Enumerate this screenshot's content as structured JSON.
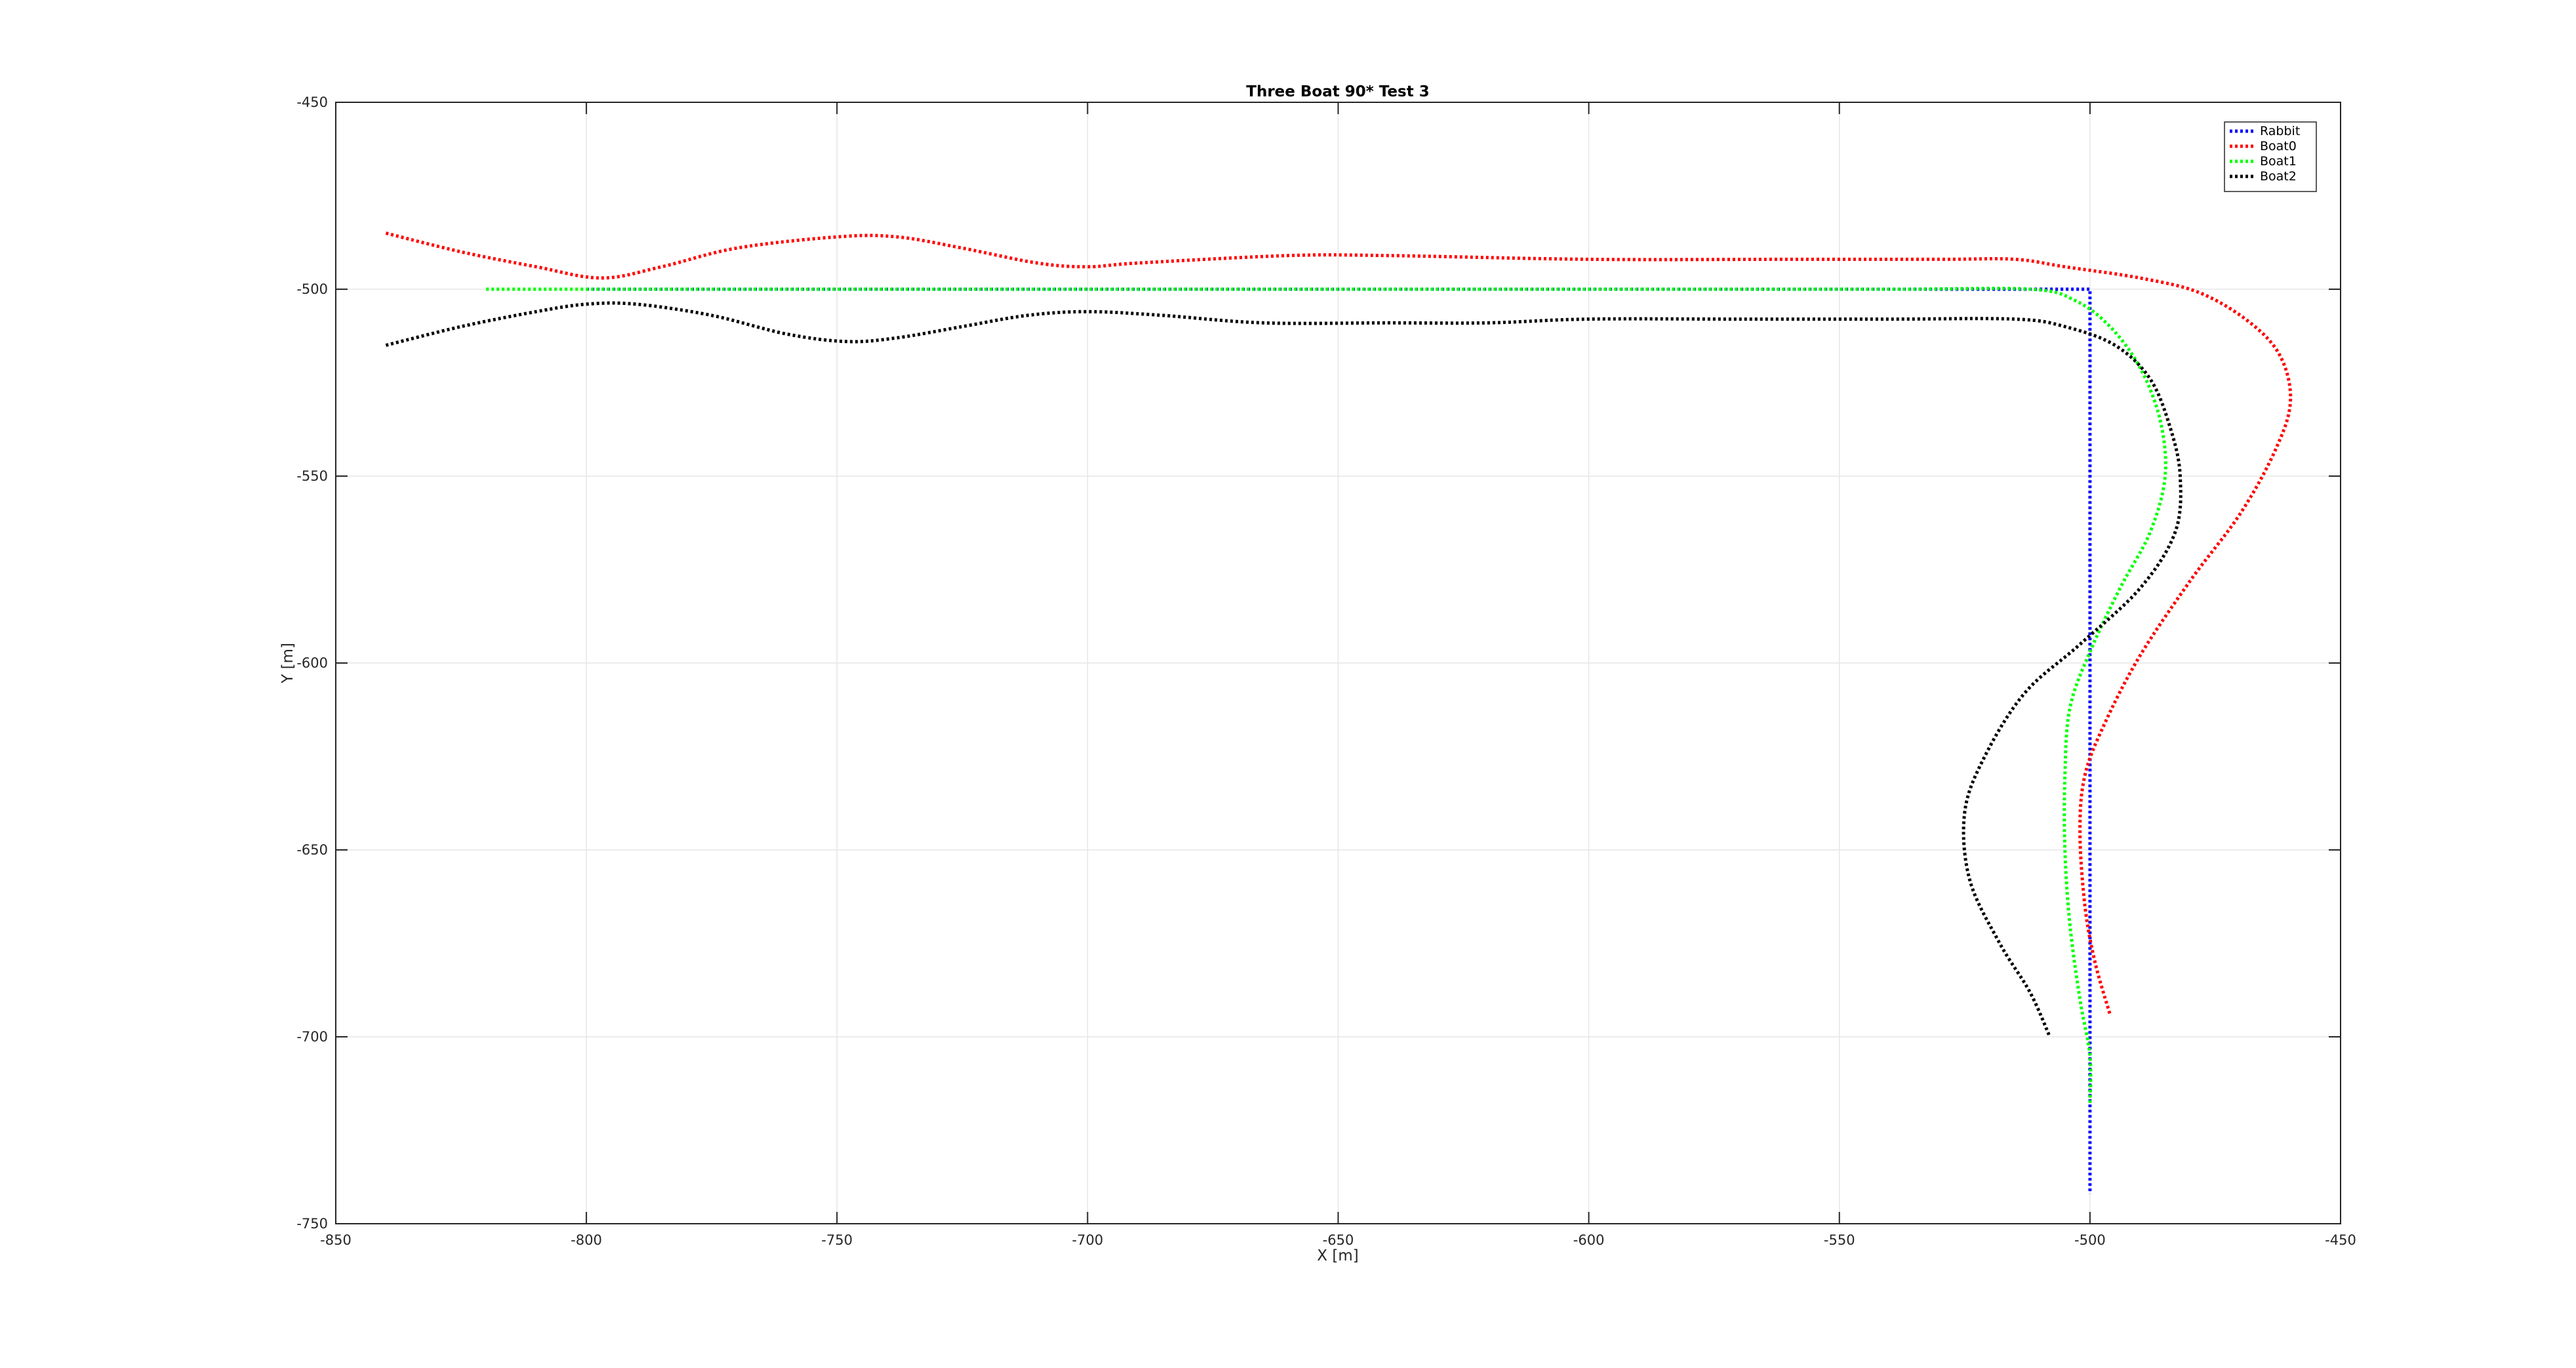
{
  "chart_data": {
    "type": "line",
    "title": "Three Boat 90* Test 3",
    "xlabel": "X [m]",
    "ylabel": "Y [m]",
    "xlim": [
      -850,
      -450
    ],
    "ylim": [
      -750,
      -450
    ],
    "xticks": [
      -850,
      -800,
      -750,
      -700,
      -650,
      -600,
      -550,
      -500,
      -450
    ],
    "yticks": [
      -450,
      -500,
      -550,
      -600,
      -650,
      -700,
      -750
    ],
    "xtick_labels": [
      "-850",
      "-800",
      "-750",
      "-700",
      "-650",
      "-600",
      "-550",
      "-500",
      "-450"
    ],
    "ytick_labels": [
      "-450",
      "-500",
      "-550",
      "-600",
      "-650",
      "-700",
      "-750"
    ],
    "grid": true,
    "legend_position": "top-right",
    "series": [
      {
        "name": "Rabbit",
        "color": "#0000ff",
        "style": "dotted",
        "points": [
          [
            -800,
            -500
          ],
          [
            -750,
            -500
          ],
          [
            -700,
            -500
          ],
          [
            -650,
            -500
          ],
          [
            -600,
            -500
          ],
          [
            -550,
            -500
          ],
          [
            -500,
            -500
          ],
          [
            -500,
            -550
          ],
          [
            -500,
            -600
          ],
          [
            -500,
            -650
          ],
          [
            -500,
            -700
          ],
          [
            -500,
            -742
          ]
        ]
      },
      {
        "name": "Boat0",
        "color": "#ff0000",
        "style": "dotted",
        "points": [
          [
            -840,
            -485
          ],
          [
            -825,
            -490
          ],
          [
            -810,
            -494
          ],
          [
            -797,
            -497
          ],
          [
            -785,
            -494
          ],
          [
            -770,
            -489
          ],
          [
            -750,
            -486
          ],
          [
            -738,
            -486
          ],
          [
            -725,
            -489
          ],
          [
            -710,
            -493
          ],
          [
            -700,
            -494
          ],
          [
            -690,
            -493
          ],
          [
            -660,
            -491
          ],
          [
            -640,
            -491
          ],
          [
            -600,
            -492
          ],
          [
            -560,
            -492
          ],
          [
            -530,
            -492
          ],
          [
            -515,
            -492
          ],
          [
            -505,
            -494
          ],
          [
            -490,
            -497
          ],
          [
            -478,
            -501
          ],
          [
            -468,
            -509
          ],
          [
            -462,
            -518
          ],
          [
            -460,
            -530
          ],
          [
            -463,
            -543
          ],
          [
            -470,
            -560
          ],
          [
            -480,
            -578
          ],
          [
            -490,
            -598
          ],
          [
            -497,
            -616
          ],
          [
            -501,
            -630
          ],
          [
            -502,
            -645
          ],
          [
            -501,
            -665
          ],
          [
            -499,
            -680
          ],
          [
            -496,
            -694
          ]
        ]
      },
      {
        "name": "Boat1",
        "color": "#00ff00",
        "style": "dotted",
        "points": [
          [
            -820,
            -500
          ],
          [
            -790,
            -500
          ],
          [
            -760,
            -500
          ],
          [
            -700,
            -500
          ],
          [
            -600,
            -500
          ],
          [
            -540,
            -500
          ],
          [
            -512,
            -500
          ],
          [
            -503,
            -503
          ],
          [
            -496,
            -510
          ],
          [
            -490,
            -521
          ],
          [
            -486,
            -535
          ],
          [
            -485,
            -550
          ],
          [
            -488,
            -565
          ],
          [
            -494,
            -580
          ],
          [
            -500,
            -597
          ],
          [
            -504,
            -612
          ],
          [
            -505,
            -630
          ],
          [
            -505,
            -650
          ],
          [
            -504,
            -670
          ],
          [
            -502,
            -690
          ],
          [
            -500,
            -705
          ],
          [
            -500,
            -718
          ]
        ]
      },
      {
        "name": "Boat2",
        "color": "#000000",
        "style": "dotted",
        "points": [
          [
            -840,
            -515
          ],
          [
            -825,
            -510
          ],
          [
            -810,
            -506
          ],
          [
            -800,
            -504
          ],
          [
            -790,
            -504
          ],
          [
            -775,
            -507
          ],
          [
            -760,
            -512
          ],
          [
            -748,
            -514
          ],
          [
            -738,
            -513
          ],
          [
            -725,
            -510
          ],
          [
            -712,
            -507
          ],
          [
            -700,
            -506
          ],
          [
            -685,
            -507
          ],
          [
            -665,
            -509
          ],
          [
            -640,
            -509
          ],
          [
            -620,
            -509
          ],
          [
            -600,
            -508
          ],
          [
            -570,
            -508
          ],
          [
            -540,
            -508
          ],
          [
            -515,
            -508
          ],
          [
            -505,
            -510
          ],
          [
            -495,
            -515
          ],
          [
            -488,
            -524
          ],
          [
            -484,
            -537
          ],
          [
            -482,
            -550
          ],
          [
            -483,
            -565
          ],
          [
            -490,
            -580
          ],
          [
            -502,
            -595
          ],
          [
            -513,
            -608
          ],
          [
            -521,
            -625
          ],
          [
            -525,
            -640
          ],
          [
            -524,
            -658
          ],
          [
            -518,
            -675
          ],
          [
            -512,
            -688
          ],
          [
            -508,
            -700
          ]
        ]
      }
    ]
  }
}
